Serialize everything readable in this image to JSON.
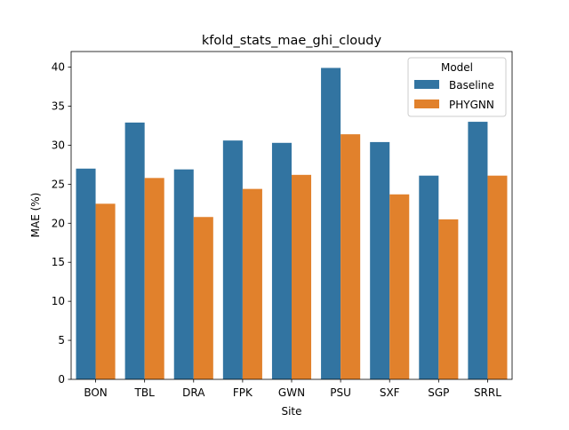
{
  "chart_data": {
    "type": "bar",
    "title": "kfold_stats_mae_ghi_cloudy",
    "xlabel": "Site",
    "ylabel": "MAE (%)",
    "categories": [
      "BON",
      "TBL",
      "DRA",
      "FPK",
      "GWN",
      "PSU",
      "SXF",
      "SGP",
      "SRRL"
    ],
    "series": [
      {
        "name": "Baseline",
        "color": "#3274a1",
        "values": [
          27.0,
          32.9,
          26.9,
          30.6,
          30.3,
          39.9,
          30.4,
          26.1,
          33.0
        ]
      },
      {
        "name": "PHYGNN",
        "color": "#e1812c",
        "values": [
          22.5,
          25.8,
          20.8,
          24.4,
          26.2,
          31.4,
          23.7,
          20.5,
          26.1
        ]
      }
    ],
    "ylim": [
      0,
      42
    ],
    "yticks": [
      0,
      5,
      10,
      15,
      20,
      25,
      30,
      35,
      40
    ],
    "grid": false,
    "legend": {
      "title": "Model",
      "position": "top-right"
    }
  }
}
